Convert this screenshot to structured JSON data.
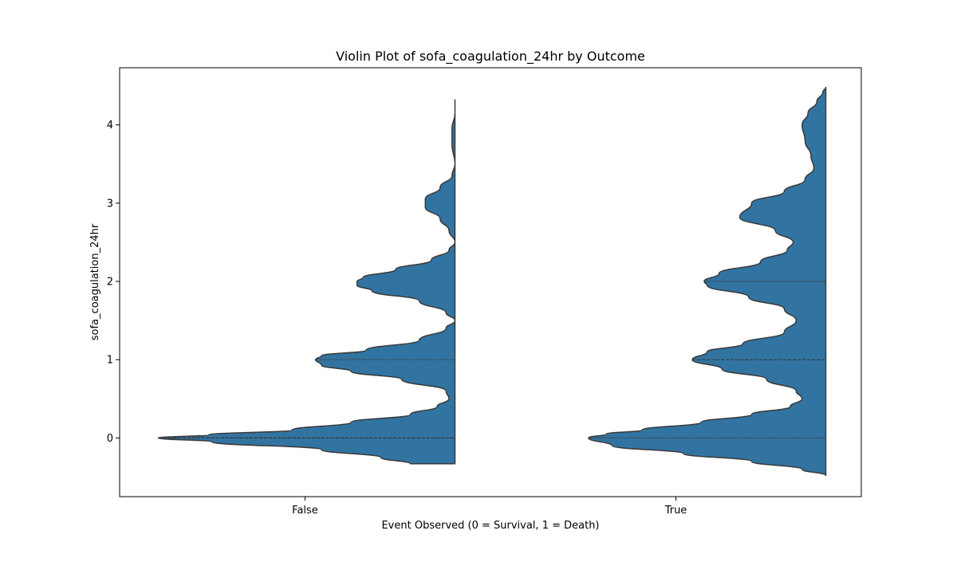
{
  "chart_data": {
    "type": "violin",
    "title": "Violin Plot of sofa_coagulation_24hr by Outcome",
    "xlabel": "Event Observed (0 = Survival, 1 = Death)",
    "ylabel": "sofa_coagulation_24hr",
    "categories": [
      "False",
      "True"
    ],
    "ylim": [
      -0.75,
      4.73
    ],
    "yticks": [
      0,
      1,
      2,
      3,
      4
    ],
    "split": "left-half",
    "color": "#3274a1",
    "edge_color": "#3a3a3a",
    "series": [
      {
        "category": "False",
        "density": [
          [
            -0.33,
            0.15
          ],
          [
            -0.25,
            0.25
          ],
          [
            -0.15,
            0.45
          ],
          [
            -0.05,
            0.82
          ],
          [
            0.0,
            1.0
          ],
          [
            0.04,
            0.83
          ],
          [
            0.1,
            0.55
          ],
          [
            0.2,
            0.35
          ],
          [
            0.3,
            0.15
          ],
          [
            0.4,
            0.06
          ],
          [
            0.5,
            0.02
          ],
          [
            0.6,
            0.03
          ],
          [
            0.75,
            0.18
          ],
          [
            0.85,
            0.35
          ],
          [
            0.93,
            0.45
          ],
          [
            1.0,
            0.47
          ],
          [
            1.05,
            0.45
          ],
          [
            1.12,
            0.3
          ],
          [
            1.25,
            0.12
          ],
          [
            1.4,
            0.03
          ],
          [
            1.5,
            0.0
          ],
          [
            1.6,
            0.03
          ],
          [
            1.75,
            0.12
          ],
          [
            1.88,
            0.28
          ],
          [
            1.95,
            0.33
          ],
          [
            2.0,
            0.33
          ],
          [
            2.05,
            0.31
          ],
          [
            2.15,
            0.2
          ],
          [
            2.27,
            0.08
          ],
          [
            2.4,
            0.02
          ],
          [
            2.5,
            0.0
          ],
          [
            2.65,
            0.02
          ],
          [
            2.8,
            0.05
          ],
          [
            2.95,
            0.1
          ],
          [
            3.05,
            0.1
          ],
          [
            3.2,
            0.05
          ],
          [
            3.35,
            0.01
          ],
          [
            3.5,
            0.0
          ],
          [
            3.75,
            0.01
          ],
          [
            3.95,
            0.01
          ],
          [
            4.15,
            0.0
          ],
          [
            4.32,
            0.0
          ]
        ],
        "quartiles": [
          0,
          0,
          1
        ]
      },
      {
        "category": "True",
        "density": [
          [
            -0.48,
            0.0
          ],
          [
            -0.4,
            0.08
          ],
          [
            -0.3,
            0.25
          ],
          [
            -0.2,
            0.48
          ],
          [
            -0.1,
            0.72
          ],
          [
            0.0,
            0.8
          ],
          [
            0.05,
            0.74
          ],
          [
            0.1,
            0.62
          ],
          [
            0.2,
            0.42
          ],
          [
            0.3,
            0.25
          ],
          [
            0.4,
            0.12
          ],
          [
            0.5,
            0.08
          ],
          [
            0.6,
            0.1
          ],
          [
            0.75,
            0.2
          ],
          [
            0.88,
            0.35
          ],
          [
            1.0,
            0.45
          ],
          [
            1.1,
            0.4
          ],
          [
            1.2,
            0.28
          ],
          [
            1.35,
            0.14
          ],
          [
            1.5,
            0.1
          ],
          [
            1.65,
            0.14
          ],
          [
            1.8,
            0.26
          ],
          [
            1.95,
            0.4
          ],
          [
            2.0,
            0.41
          ],
          [
            2.1,
            0.36
          ],
          [
            2.25,
            0.22
          ],
          [
            2.4,
            0.13
          ],
          [
            2.5,
            0.11
          ],
          [
            2.65,
            0.17
          ],
          [
            2.82,
            0.29
          ],
          [
            3.0,
            0.25
          ],
          [
            3.15,
            0.14
          ],
          [
            3.3,
            0.07
          ],
          [
            3.45,
            0.04
          ],
          [
            3.6,
            0.05
          ],
          [
            3.8,
            0.07
          ],
          [
            4.0,
            0.08
          ],
          [
            4.15,
            0.06
          ],
          [
            4.3,
            0.03
          ],
          [
            4.42,
            0.01
          ],
          [
            4.48,
            0.0
          ]
        ],
        "quartiles": [
          0,
          1,
          2
        ]
      }
    ]
  }
}
